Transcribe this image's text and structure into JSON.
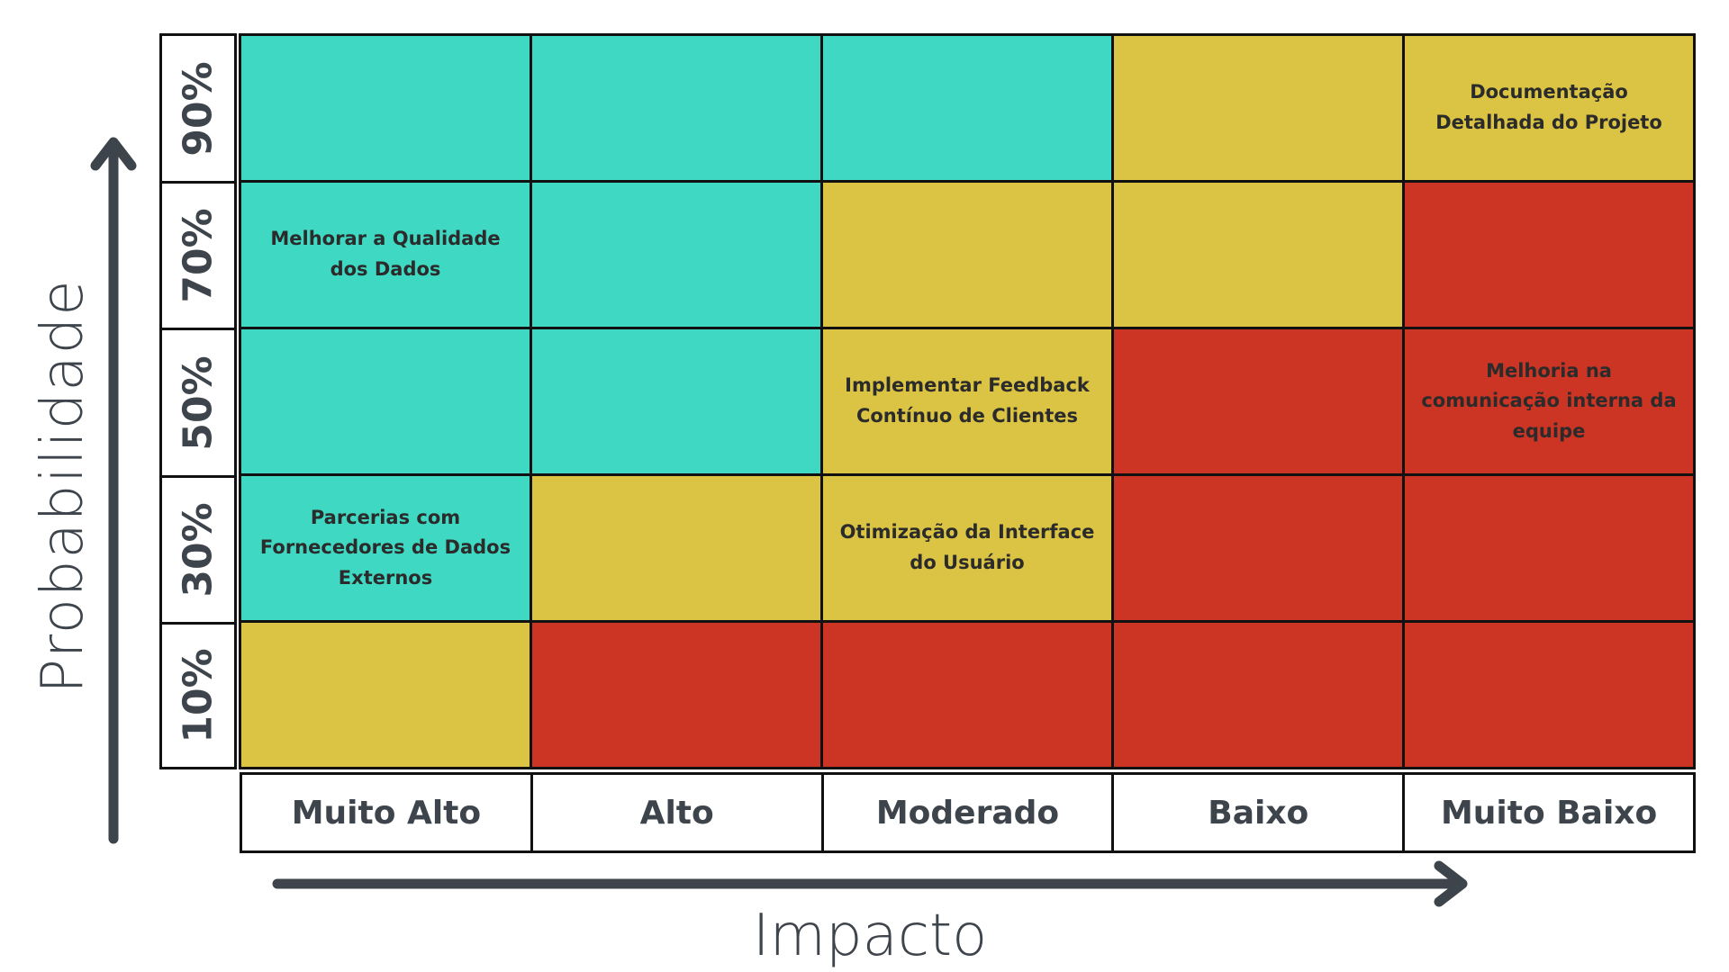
{
  "axes": {
    "y_label": "Probabilidade",
    "x_label": "Impacto"
  },
  "probabilities": [
    "90%",
    "70%",
    "50%",
    "30%",
    "10%"
  ],
  "impacts": [
    "Muito Alto",
    "Alto",
    "Moderado",
    "Baixo",
    "Muito Baixo"
  ],
  "colors": {
    "teal": "#3fd9c3",
    "yellow": "#dbc443",
    "red": "#cc3424",
    "axis": "#3e444b",
    "grid": "#111111"
  },
  "matrix": [
    [
      {
        "color": "teal",
        "text": ""
      },
      {
        "color": "teal",
        "text": ""
      },
      {
        "color": "teal",
        "text": ""
      },
      {
        "color": "yellow",
        "text": ""
      },
      {
        "color": "yellow",
        "text": "Documentação Detalhada do Projeto"
      }
    ],
    [
      {
        "color": "teal",
        "text": "Melhorar a Qualidade dos Dados"
      },
      {
        "color": "teal",
        "text": ""
      },
      {
        "color": "yellow",
        "text": ""
      },
      {
        "color": "yellow",
        "text": ""
      },
      {
        "color": "red",
        "text": ""
      }
    ],
    [
      {
        "color": "teal",
        "text": ""
      },
      {
        "color": "teal",
        "text": ""
      },
      {
        "color": "yellow",
        "text": "Implementar Feedback Contínuo de Clientes"
      },
      {
        "color": "red",
        "text": ""
      },
      {
        "color": "red",
        "text": "Melhoria na comunicação interna da equipe"
      }
    ],
    [
      {
        "color": "teal",
        "text": "Parcerias com Fornecedores de Dados Externos"
      },
      {
        "color": "yellow",
        "text": ""
      },
      {
        "color": "yellow",
        "text": "Otimização da Interface do Usuário"
      },
      {
        "color": "red",
        "text": ""
      },
      {
        "color": "red",
        "text": ""
      }
    ],
    [
      {
        "color": "yellow",
        "text": ""
      },
      {
        "color": "red",
        "text": ""
      },
      {
        "color": "red",
        "text": ""
      },
      {
        "color": "red",
        "text": ""
      },
      {
        "color": "red",
        "text": ""
      }
    ]
  ]
}
